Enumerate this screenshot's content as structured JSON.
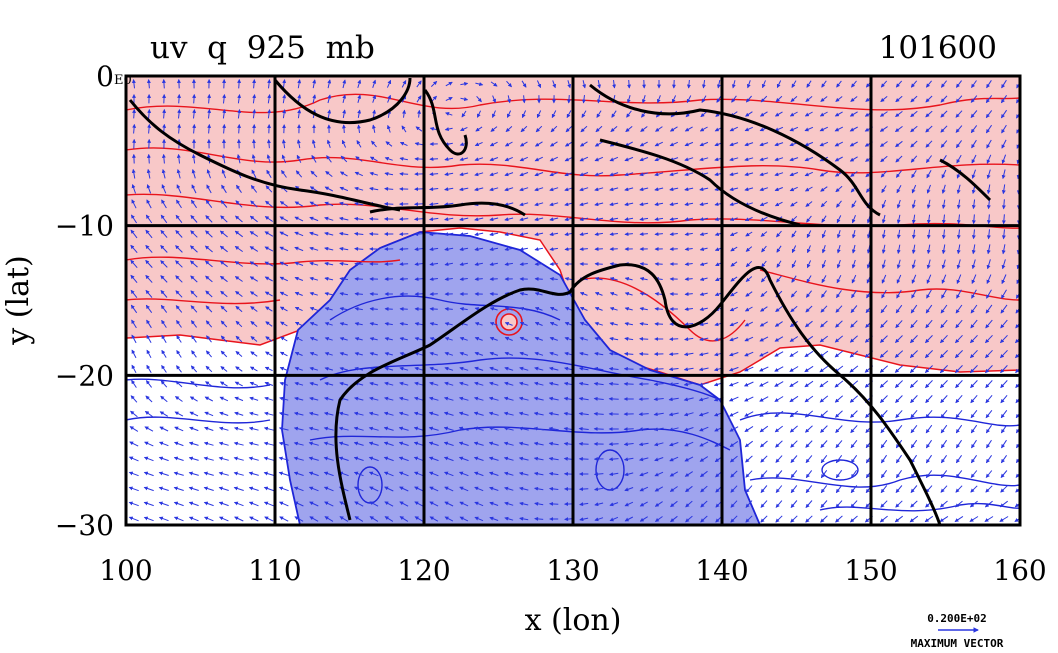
{
  "chart_data": {
    "type": "contour",
    "title": "uv  q  925  mb",
    "timestamp": "101600",
    "xlabel": "x (lon)",
    "ylabel": "y (lat)",
    "xlim": [
      100,
      160
    ],
    "ylim": [
      -30,
      0
    ],
    "xticks": [
      100,
      110,
      120,
      130,
      140,
      150,
      160
    ],
    "xtick_labels": [
      "100",
      "110",
      "120",
      "130",
      "140",
      "150",
      "160"
    ],
    "yticks": [
      0,
      -10,
      -20,
      -30
    ],
    "ytick_labels": [
      "0",
      "−10",
      "−20",
      "−30"
    ],
    "y_top_suffix": "E0",
    "grid": true,
    "grid_x": [
      110,
      120,
      130,
      140,
      150
    ],
    "grid_y": [
      -10,
      -20
    ],
    "vector_legend": {
      "value": "0.200E+02",
      "label": "MAXIMUM VECTOR"
    },
    "colors": {
      "positive_fill": "#f8c8c8",
      "positive_contour": "#e8141c",
      "negative_fill": "#9fa4ee",
      "negative_contour": "#1f26d8",
      "vector": "#2a36e0",
      "coastline": "#000000",
      "grid": "#000000"
    }
  }
}
